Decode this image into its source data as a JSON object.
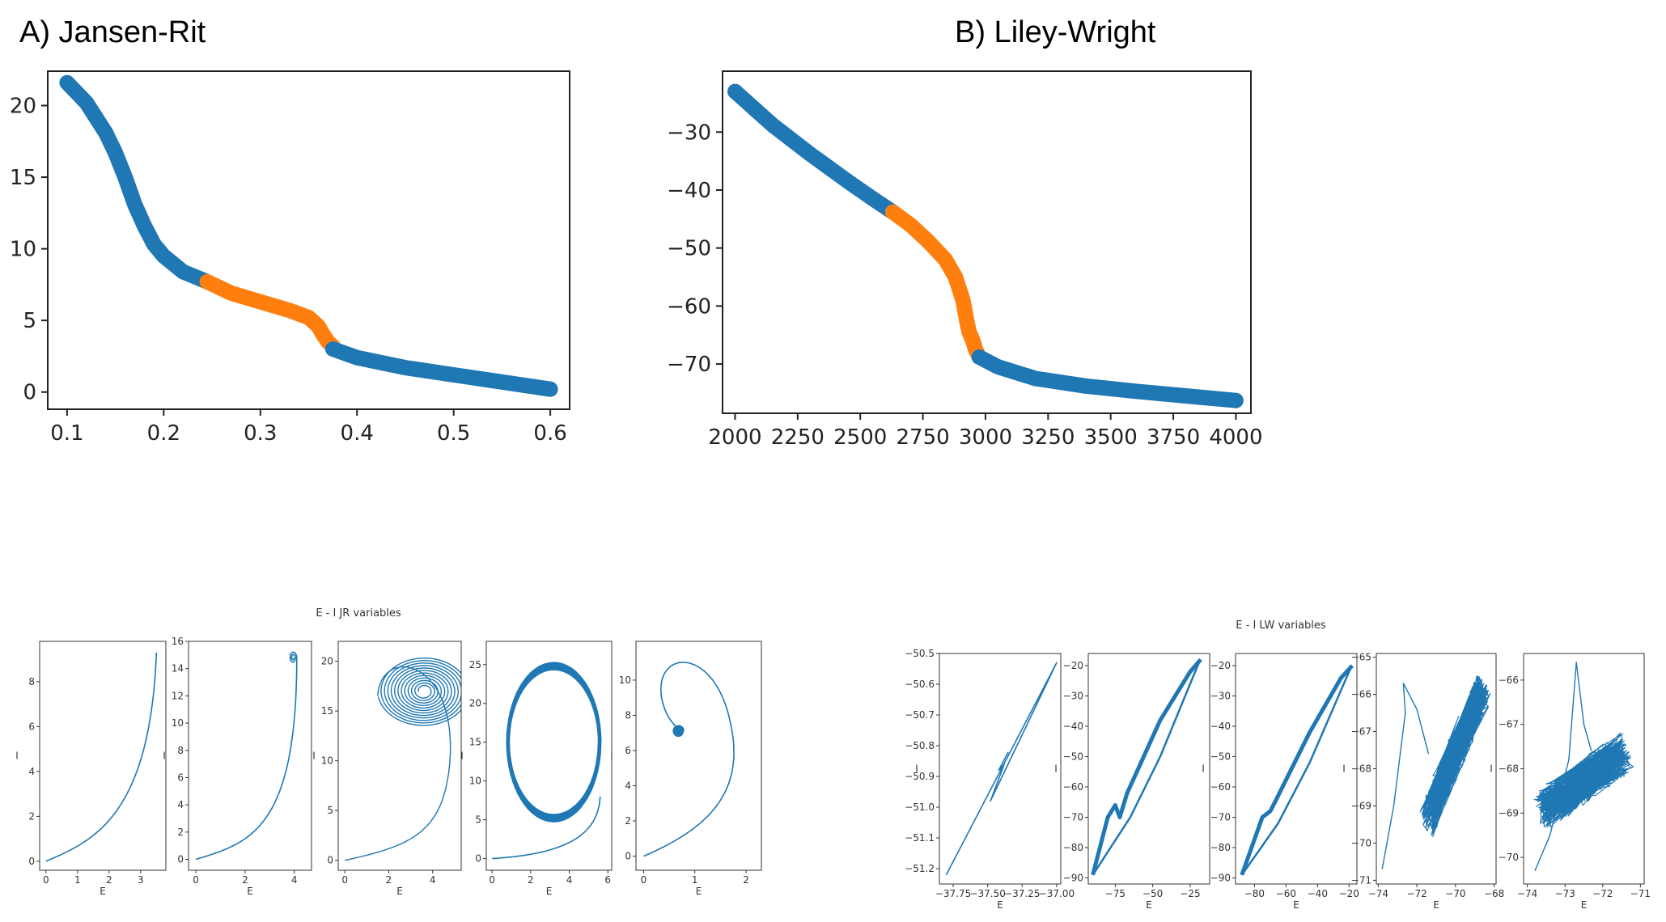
{
  "panels": {
    "a_label": "A) Jansen-Rit",
    "b_label": "B) Liley-Wright"
  },
  "colors": {
    "blue": "#1f77b4",
    "orange": "#ff7f0e"
  },
  "chart_data": [
    {
      "id": "jr_main",
      "type": "scatter",
      "title": "",
      "xlabel": "",
      "ylabel": "",
      "xlim": [
        0.08,
        0.62
      ],
      "ylim": [
        -1.2,
        22.4
      ],
      "xticks": [
        "0.1",
        "0.2",
        "0.3",
        "0.4",
        "0.5",
        "0.6"
      ],
      "xtick_values": [
        0.1,
        0.2,
        0.3,
        0.4,
        0.5,
        0.6
      ],
      "yticks": [
        "0",
        "5",
        "10",
        "15",
        "20"
      ],
      "ytick_values": [
        0,
        5,
        10,
        15,
        20
      ],
      "grid": false,
      "series": [
        {
          "color": "blue",
          "x": [
            0.1,
            0.12,
            0.14,
            0.15,
            0.16,
            0.17,
            0.18,
            0.19,
            0.2,
            0.22,
            0.245
          ],
          "y": [
            21.6,
            20.2,
            18.1,
            16.7,
            15.0,
            13.1,
            11.6,
            10.3,
            9.5,
            8.4,
            7.7
          ]
        },
        {
          "color": "orange",
          "x": [
            0.245,
            0.27,
            0.3,
            0.33,
            0.35,
            0.36,
            0.365,
            0.37,
            0.375
          ],
          "y": [
            7.7,
            6.9,
            6.3,
            5.7,
            5.2,
            4.6,
            4.0,
            3.5,
            3.2
          ]
        },
        {
          "color": "blue",
          "x": [
            0.375,
            0.4,
            0.45,
            0.5,
            0.55,
            0.6
          ],
          "y": [
            3.0,
            2.4,
            1.7,
            1.2,
            0.7,
            0.2
          ]
        }
      ]
    },
    {
      "id": "lw_main",
      "type": "scatter",
      "title": "",
      "xlabel": "",
      "ylabel": "",
      "xlim": [
        1950,
        4060
      ],
      "ylim": [
        -78.5,
        -19.5
      ],
      "xticks": [
        "2000",
        "2250",
        "2500",
        "2750",
        "3000",
        "3250",
        "3500",
        "3750",
        "4000"
      ],
      "xtick_values": [
        2000,
        2250,
        2500,
        2750,
        3000,
        3250,
        3500,
        3750,
        4000
      ],
      "yticks": [
        "−30",
        "−40",
        "−50",
        "−60",
        "−70"
      ],
      "ytick_values": [
        -30,
        -40,
        -50,
        -60,
        -70
      ],
      "grid": false,
      "series": [
        {
          "color": "blue",
          "x": [
            2000,
            2150,
            2300,
            2450,
            2550,
            2630
          ],
          "y": [
            -23,
            -28.8,
            -33.8,
            -38.5,
            -41.5,
            -43.8
          ]
        },
        {
          "color": "orange",
          "x": [
            2630,
            2700,
            2770,
            2840,
            2880,
            2910,
            2925,
            2935,
            2950,
            2960,
            2975
          ],
          "y": [
            -43.8,
            -46.0,
            -48.8,
            -52.0,
            -55.0,
            -59.0,
            -62.5,
            -64.5,
            -66.0,
            -67.5,
            -68.8
          ]
        },
        {
          "color": "blue",
          "x": [
            2975,
            3050,
            3200,
            3400,
            3600,
            3800,
            4000
          ],
          "y": [
            -68.8,
            -70.5,
            -72.5,
            -73.8,
            -74.7,
            -75.5,
            -76.3
          ]
        }
      ]
    }
  ],
  "small_multiples": {
    "jr": {
      "suptitle": "E - I JR variables",
      "xlabel": "E",
      "ylabel": "I",
      "panels": [
        {
          "xlim": [
            -0.2,
            3.8
          ],
          "ylim": [
            -0.4,
            9.8
          ],
          "xticks": [
            "0",
            "1",
            "2",
            "3"
          ],
          "xtick_values": [
            0,
            1,
            2,
            3
          ],
          "yticks": [
            "0",
            "2",
            "4",
            "6",
            "8"
          ],
          "ytick_values": [
            0,
            2,
            4,
            6,
            8
          ]
        },
        {
          "xlim": [
            -0.3,
            4.7
          ],
          "ylim": [
            -0.8,
            16
          ],
          "xticks": [
            "0",
            "2",
            "4"
          ],
          "xtick_values": [
            0,
            2,
            4
          ],
          "yticks": [
            "0",
            "2",
            "4",
            "6",
            "8",
            "10",
            "12",
            "14",
            "16"
          ],
          "ytick_values": [
            0,
            2,
            4,
            6,
            8,
            10,
            12,
            14,
            16
          ]
        },
        {
          "xlim": [
            -0.3,
            5.3
          ],
          "ylim": [
            -1,
            22
          ],
          "xticks": [
            "0",
            "2",
            "4"
          ],
          "xtick_values": [
            0,
            2,
            4
          ],
          "yticks": [
            "0",
            "5",
            "10",
            "15",
            "20"
          ],
          "ytick_values": [
            0,
            5,
            10,
            15,
            20
          ]
        },
        {
          "xlim": [
            -0.3,
            6.2
          ],
          "ylim": [
            -1.5,
            28
          ],
          "xticks": [
            "0",
            "2",
            "4",
            "6"
          ],
          "xtick_values": [
            0,
            2,
            4,
            6
          ],
          "yticks": [
            "0",
            "5",
            "10",
            "15",
            "20",
            "25"
          ],
          "ytick_values": [
            0,
            5,
            10,
            15,
            20,
            25
          ]
        },
        {
          "xlim": [
            -0.15,
            2.3
          ],
          "ylim": [
            -0.8,
            12.2
          ],
          "xticks": [
            "0",
            "1",
            "2"
          ],
          "xtick_values": [
            0,
            1,
            2
          ],
          "yticks": [
            "0",
            "2",
            "4",
            "6",
            "8",
            "10"
          ],
          "ytick_values": [
            0,
            2,
            4,
            6,
            8,
            10
          ]
        }
      ]
    },
    "lw": {
      "suptitle": "E - I LW variables",
      "xlabel": "E",
      "ylabel": "I",
      "panels": [
        {
          "xlim": [
            -37.85,
            -36.97
          ],
          "ylim": [
            -51.25,
            -50.5
          ],
          "xticks": [
            "−37.75",
            "−37.50",
            "−37.25",
            "−37.00"
          ],
          "xtick_values": [
            -37.75,
            -37.5,
            -37.25,
            -37.0
          ],
          "yticks": [
            "−50.5",
            "−50.6",
            "−50.7",
            "−50.8",
            "−50.9",
            "−51.0",
            "−51.1",
            "−51.2"
          ],
          "ytick_values": [
            -50.5,
            -50.6,
            -50.7,
            -50.8,
            -50.9,
            -51.0,
            -51.1,
            -51.2
          ]
        },
        {
          "xlim": [
            -93,
            -12
          ],
          "ylim": [
            -92,
            -16
          ],
          "xticks": [
            "−75",
            "−50",
            "−25"
          ],
          "xtick_values": [
            -75,
            -50,
            -25
          ],
          "yticks": [
            "−20",
            "−30",
            "−40",
            "−50",
            "−60",
            "−70",
            "−80",
            "−90"
          ],
          "ytick_values": [
            -20,
            -30,
            -40,
            -50,
            -60,
            -70,
            -80,
            -90
          ]
        },
        {
          "xlim": [
            -92,
            -15
          ],
          "ylim": [
            -92,
            -16
          ],
          "xticks": [
            "−80",
            "−60",
            "−40",
            "−20"
          ],
          "xtick_values": [
            -80,
            -60,
            -40,
            -20
          ],
          "yticks": [
            "−20",
            "−30",
            "−40",
            "−50",
            "−60",
            "−70",
            "−80",
            "−90"
          ],
          "ytick_values": [
            -20,
            -30,
            -40,
            -50,
            -60,
            -70,
            -80,
            -90
          ]
        },
        {
          "xlim": [
            -74.1,
            -67.9
          ],
          "ylim": [
            -71.1,
            -64.9
          ],
          "xticks": [
            "−74",
            "−72",
            "−70",
            "−68"
          ],
          "xtick_values": [
            -74,
            -72,
            -70,
            -68
          ],
          "yticks": [
            "−65",
            "−66",
            "−67",
            "−68",
            "−69",
            "−70",
            "−71"
          ],
          "ytick_values": [
            -65,
            -66,
            -67,
            -68,
            -69,
            -70,
            -71
          ]
        },
        {
          "xlim": [
            -74.1,
            -70.9
          ],
          "ylim": [
            -70.6,
            -65.4
          ],
          "xticks": [
            "−74",
            "−73",
            "−72",
            "−71"
          ],
          "xtick_values": [
            -74,
            -73,
            -72,
            -71
          ],
          "yticks": [
            "−66",
            "−67",
            "−68",
            "−69",
            "−70"
          ],
          "ytick_values": [
            -66,
            -67,
            -68,
            -69,
            -70
          ]
        }
      ]
    }
  }
}
